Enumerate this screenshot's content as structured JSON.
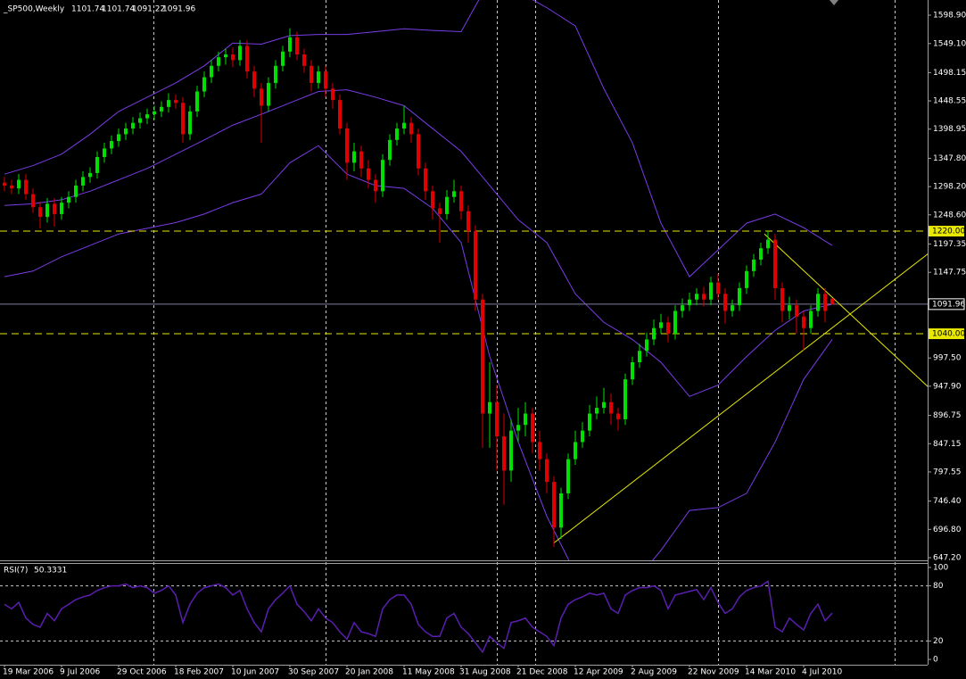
{
  "chart_data": {
    "type": "candlestick",
    "title": "_SP500,Weekly",
    "header_values": [
      1101.74,
      1101.74,
      1091.22,
      1091.96
    ],
    "up_color": "#00e000",
    "down_color": "#e00000",
    "categories": [
      "19 Mar 2006",
      null,
      null,
      null,
      null,
      null,
      null,
      null,
      "9 Jul 2006",
      null,
      null,
      null,
      null,
      null,
      null,
      null,
      "29 Oct 2006",
      null,
      null,
      null,
      null,
      null,
      null,
      null,
      "18 Feb 2007",
      null,
      null,
      null,
      null,
      null,
      null,
      null,
      "10 Jun 2007",
      null,
      null,
      null,
      null,
      null,
      null,
      null,
      "30 Sep 2007",
      null,
      null,
      null,
      null,
      null,
      null,
      null,
      "20 Jan 2008",
      null,
      null,
      null,
      null,
      null,
      null,
      null,
      "11 May 2008",
      null,
      null,
      null,
      null,
      null,
      null,
      null,
      "31 Aug 2008",
      null,
      null,
      null,
      null,
      null,
      null,
      null,
      "21 Dec 2008",
      null,
      null,
      null,
      null,
      null,
      null,
      null,
      "12 Apr 2009",
      null,
      null,
      null,
      null,
      null,
      null,
      null,
      "2 Aug 2009",
      null,
      null,
      null,
      null,
      null,
      null,
      null,
      "22 Nov 2009",
      null,
      null,
      null,
      null,
      null,
      null,
      null,
      "14 Mar 2010",
      null,
      null,
      null,
      null,
      null,
      null,
      null,
      "4 Jul 2010",
      null,
      null,
      null,
      null
    ],
    "candles": {
      "open": [
        1305,
        1300,
        1295,
        1310,
        1285,
        1262,
        1245,
        1268,
        1250,
        1270,
        1280,
        1300,
        1315,
        1322,
        1350,
        1365,
        1378,
        1390,
        1400,
        1410,
        1418,
        1425,
        1430,
        1438,
        1450,
        1445,
        1390,
        1430,
        1465,
        1490,
        1510,
        1525,
        1530,
        1520,
        1545,
        1500,
        1470,
        1440,
        1480,
        1510,
        1535,
        1560,
        1530,
        1510,
        1480,
        1500,
        1470,
        1450,
        1400,
        1340,
        1360,
        1330,
        1310,
        1290,
        1345,
        1380,
        1400,
        1410,
        1390,
        1330,
        1290,
        1260,
        1250,
        1280,
        1290,
        1255,
        1220,
        1100,
        900,
        920,
        860,
        800,
        870,
        880,
        900,
        850,
        820,
        780,
        700,
        760,
        820,
        850,
        870,
        900,
        910,
        920,
        900,
        890,
        960,
        990,
        1010,
        1030,
        1050,
        1060,
        1040,
        1080,
        1090,
        1100,
        1110,
        1100,
        1130,
        1110,
        1080,
        1090,
        1120,
        1150,
        1170,
        1190,
        1205,
        1120,
        1080,
        1090,
        1070,
        1050,
        1080,
        1110,
        1101.74
      ],
      "high": [
        1315,
        1310,
        1320,
        1320,
        1295,
        1272,
        1278,
        1278,
        1280,
        1290,
        1310,
        1325,
        1332,
        1360,
        1375,
        1388,
        1400,
        1410,
        1420,
        1428,
        1435,
        1440,
        1448,
        1462,
        1460,
        1455,
        1440,
        1475,
        1500,
        1520,
        1535,
        1540,
        1542,
        1555,
        1555,
        1510,
        1480,
        1490,
        1520,
        1545,
        1576,
        1570,
        1540,
        1520,
        1510,
        1510,
        1480,
        1460,
        1410,
        1375,
        1370,
        1345,
        1320,
        1355,
        1390,
        1410,
        1440,
        1420,
        1400,
        1340,
        1300,
        1270,
        1292,
        1310,
        1300,
        1265,
        1230,
        1110,
        990,
        950,
        900,
        890,
        910,
        920,
        910,
        870,
        830,
        790,
        770,
        830,
        870,
        885,
        915,
        930,
        945,
        935,
        910,
        970,
        1000,
        1022,
        1042,
        1065,
        1075,
        1070,
        1090,
        1102,
        1112,
        1120,
        1122,
        1140,
        1145,
        1120,
        1100,
        1130,
        1160,
        1180,
        1200,
        1220,
        1215,
        1130,
        1105,
        1100,
        1080,
        1090,
        1120,
        1120,
        1101.74
      ],
      "low": [
        1290,
        1285,
        1285,
        1275,
        1252,
        1225,
        1235,
        1228,
        1240,
        1260,
        1270,
        1290,
        1305,
        1312,
        1340,
        1355,
        1368,
        1380,
        1390,
        1400,
        1408,
        1415,
        1420,
        1428,
        1435,
        1375,
        1380,
        1420,
        1455,
        1480,
        1500,
        1512,
        1508,
        1510,
        1488,
        1455,
        1375,
        1430,
        1470,
        1500,
        1525,
        1520,
        1498,
        1465,
        1470,
        1455,
        1435,
        1390,
        1310,
        1325,
        1315,
        1295,
        1270,
        1280,
        1335,
        1370,
        1390,
        1375,
        1318,
        1275,
        1240,
        1200,
        1240,
        1270,
        1240,
        1200,
        1080,
        840,
        840,
        800,
        740,
        780,
        850,
        860,
        830,
        800,
        760,
        666,
        680,
        750,
        810,
        840,
        860,
        890,
        900,
        880,
        870,
        880,
        950,
        980,
        1000,
        1020,
        1040,
        1025,
        1030,
        1068,
        1080,
        1090,
        1088,
        1090,
        1100,
        1058,
        1070,
        1080,
        1110,
        1140,
        1160,
        1180,
        1100,
        1060,
        1065,
        1040,
        1011,
        1040,
        1070,
        1060,
        1091.22
      ],
      "close": [
        1300,
        1295,
        1310,
        1285,
        1262,
        1245,
        1268,
        1250,
        1270,
        1280,
        1300,
        1315,
        1322,
        1350,
        1365,
        1378,
        1390,
        1400,
        1410,
        1418,
        1425,
        1430,
        1438,
        1450,
        1445,
        1390,
        1430,
        1465,
        1490,
        1510,
        1525,
        1530,
        1520,
        1545,
        1500,
        1470,
        1440,
        1480,
        1510,
        1535,
        1560,
        1530,
        1510,
        1480,
        1500,
        1470,
        1450,
        1400,
        1340,
        1360,
        1330,
        1310,
        1290,
        1345,
        1380,
        1400,
        1410,
        1390,
        1330,
        1290,
        1260,
        1250,
        1280,
        1290,
        1255,
        1220,
        1100,
        900,
        920,
        860,
        800,
        870,
        880,
        900,
        850,
        820,
        780,
        700,
        760,
        820,
        850,
        870,
        900,
        910,
        920,
        900,
        890,
        960,
        990,
        1010,
        1030,
        1050,
        1060,
        1040,
        1080,
        1090,
        1100,
        1110,
        1100,
        1130,
        1110,
        1080,
        1090,
        1120,
        1150,
        1170,
        1190,
        1205,
        1120,
        1080,
        1090,
        1070,
        1050,
        1080,
        1110,
        1080,
        1091.96
      ]
    },
    "bands": {
      "color": "#7a3ce8",
      "x": [
        0,
        4,
        8,
        12,
        16,
        20,
        24,
        28,
        32,
        36,
        40,
        44,
        48,
        52,
        56,
        60,
        64,
        68,
        72,
        76,
        80,
        84,
        88,
        92,
        96,
        100,
        104,
        108,
        112,
        116
      ],
      "upper": [
        1320,
        1335,
        1355,
        1390,
        1430,
        1455,
        1480,
        1510,
        1550,
        1548,
        1563,
        1565,
        1565,
        1570,
        1575,
        1572,
        1570,
        1660,
        1640,
        1612,
        1580,
        1470,
        1375,
        1234,
        1140,
        1187,
        1234,
        1250,
        1226,
        1195
      ],
      "middle": [
        1265,
        1268,
        1275,
        1290,
        1310,
        1330,
        1355,
        1380,
        1406,
        1425,
        1445,
        1465,
        1468,
        1455,
        1440,
        1400,
        1360,
        1300,
        1240,
        1200,
        1110,
        1060,
        1030,
        990,
        930,
        950,
        1000,
        1046,
        1080,
        1092
      ],
      "lower": [
        1140,
        1150,
        1175,
        1195,
        1215,
        1225,
        1235,
        1250,
        1270,
        1285,
        1340,
        1370,
        1320,
        1300,
        1295,
        1260,
        1200,
        1000,
        850,
        720,
        620,
        580,
        600,
        660,
        730,
        735,
        760,
        850,
        960,
        1030
      ]
    },
    "trendlines": [
      {
        "color": "#e8e800",
        "points": [
          [
            77,
            673
          ],
          [
            129.6,
            1182
          ]
        ]
      },
      {
        "color": "#e8e800",
        "points": [
          [
            106.5,
            1215
          ],
          [
            129.6,
            945
          ]
        ]
      }
    ],
    "levels": [
      {
        "value": 1220,
        "label": "1220.00",
        "color": "#e8e800",
        "dashed": true
      },
      {
        "value": 1091.96,
        "label": "1091.96",
        "color": "#8080a0",
        "dashed": false
      },
      {
        "value": 1040,
        "label": "1040.00",
        "color": "#e8e800",
        "dashed": true
      }
    ],
    "ylim": [
      642.5,
      1625.5
    ],
    "yticks": [
      {
        "value": 1598.9,
        "label": "1598.90"
      },
      {
        "value": 1549.1,
        "label": "1549.10"
      },
      {
        "value": 1498.15,
        "label": "1498.15"
      },
      {
        "value": 1448.55,
        "label": "1448.55"
      },
      {
        "value": 1398.95,
        "label": "1398.95"
      },
      {
        "value": 1347.8,
        "label": "1347.80"
      },
      {
        "value": 1298.2,
        "label": "1298.20"
      },
      {
        "value": 1248.6,
        "label": "1248.60"
      },
      {
        "value": 1197.35,
        "label": "1197.35"
      },
      {
        "value": 1147.75,
        "label": "1147.75"
      },
      {
        "value": 997.5,
        "label": "997.50"
      },
      {
        "value": 947.9,
        "label": "947.90"
      },
      {
        "value": 896.75,
        "label": "896.75"
      },
      {
        "value": 847.15,
        "label": "847.15"
      },
      {
        "value": 797.55,
        "label": "797.55"
      },
      {
        "value": 746.4,
        "label": "746.40"
      },
      {
        "value": 696.8,
        "label": "696.80"
      },
      {
        "value": 647.2,
        "label": "647.20"
      }
    ],
    "rsi": {
      "label": "RSI(7)",
      "last": 50.3331,
      "color": "#5a1eb0",
      "ylim": [
        0,
        100
      ],
      "yticks": [
        100,
        80,
        20,
        0
      ],
      "levels": [
        80,
        20
      ],
      "values": [
        60,
        55,
        62,
        45,
        38,
        35,
        50,
        42,
        55,
        60,
        65,
        68,
        70,
        75,
        78,
        80,
        80,
        82,
        78,
        80,
        78,
        72,
        75,
        80,
        70,
        40,
        60,
        72,
        78,
        80,
        82,
        78,
        70,
        75,
        55,
        40,
        30,
        55,
        65,
        72,
        80,
        60,
        52,
        42,
        55,
        45,
        40,
        30,
        22,
        40,
        30,
        28,
        25,
        55,
        65,
        70,
        70,
        60,
        38,
        30,
        25,
        25,
        45,
        50,
        35,
        28,
        18,
        8,
        25,
        18,
        12,
        40,
        42,
        45,
        35,
        30,
        25,
        15,
        45,
        60,
        65,
        68,
        72,
        70,
        72,
        55,
        50,
        70,
        75,
        78,
        78,
        80,
        75,
        55,
        70,
        72,
        74,
        76,
        65,
        78,
        62,
        50,
        55,
        68,
        75,
        78,
        80,
        85,
        35,
        30,
        45,
        38,
        32,
        50,
        60,
        42,
        50.3331
      ]
    }
  }
}
